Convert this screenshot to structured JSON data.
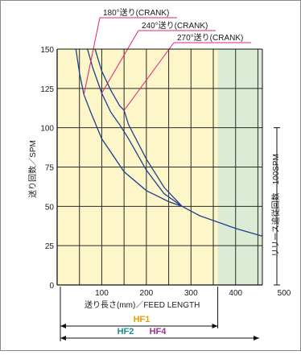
{
  "chart_data": {
    "type": "line",
    "xlabel": "送り長さ(mm)／FEED LENGTH",
    "ylabel": "送り回数／SPM",
    "right_label": "リリース追従回数　100SPM",
    "xlim": [
      0,
      460
    ],
    "ylim": [
      0,
      150
    ],
    "x_ticks": [
      100,
      200,
      300,
      400,
      500
    ],
    "y_ticks": [
      0,
      25,
      50,
      75,
      100,
      125,
      150
    ],
    "grid": true,
    "bands": [
      {
        "from": 0,
        "to": 360,
        "color": "#fdf6c8"
      },
      {
        "from": 360,
        "to": 460,
        "color": "#dcebd4"
      }
    ],
    "right_bracket": {
      "from": 0,
      "to": 100
    },
    "series": [
      {
        "name": "180°送り(CRANK)",
        "color": "#1f3f8f",
        "points": [
          [
            42,
            150
          ],
          [
            50,
            135
          ],
          [
            60,
            121
          ],
          [
            75,
            110
          ],
          [
            100,
            93
          ],
          [
            150,
            72
          ],
          [
            200,
            60
          ],
          [
            250,
            53
          ],
          [
            280,
            50
          ],
          [
            320,
            44
          ],
          [
            360,
            40
          ],
          [
            400,
            36
          ],
          [
            460,
            31
          ]
        ]
      },
      {
        "name": "240°送り(CRANK)",
        "color": "#1f3f8f",
        "points": [
          [
            68,
            150
          ],
          [
            80,
            138
          ],
          [
            100,
            122
          ],
          [
            120,
            110
          ],
          [
            140,
            102
          ],
          [
            160,
            93
          ],
          [
            200,
            73
          ],
          [
            240,
            58
          ],
          [
            280,
            50
          ]
        ]
      },
      {
        "name": "270°送り(CRANK)",
        "color": "#1f3f8f",
        "points": [
          [
            85,
            150
          ],
          [
            100,
            136
          ],
          [
            120,
            124
          ],
          [
            140,
            114
          ],
          [
            150,
            111
          ],
          [
            160,
            102
          ],
          [
            200,
            80
          ],
          [
            240,
            62
          ],
          [
            280,
            50
          ]
        ]
      }
    ],
    "callouts": [
      {
        "text": "180°送り(CRANK)",
        "target_x": 60,
        "target_y": 121
      },
      {
        "text": "240°送り(CRANK)",
        "target_x": 100,
        "target_y": 122
      },
      {
        "text": "270°送り(CRANK)",
        "target_x": 150,
        "target_y": 111
      }
    ],
    "ranges": [
      {
        "label": "HF1",
        "color": "#e8a000",
        "from": 0,
        "to": 360
      },
      {
        "label": "HF2",
        "color": "#1a8f8f",
        "from": 0,
        "to": 460
      },
      {
        "label": "HF4",
        "color": "#a0308f",
        "from": 0,
        "to": 460
      }
    ],
    "callout_color": "#e0207a"
  }
}
